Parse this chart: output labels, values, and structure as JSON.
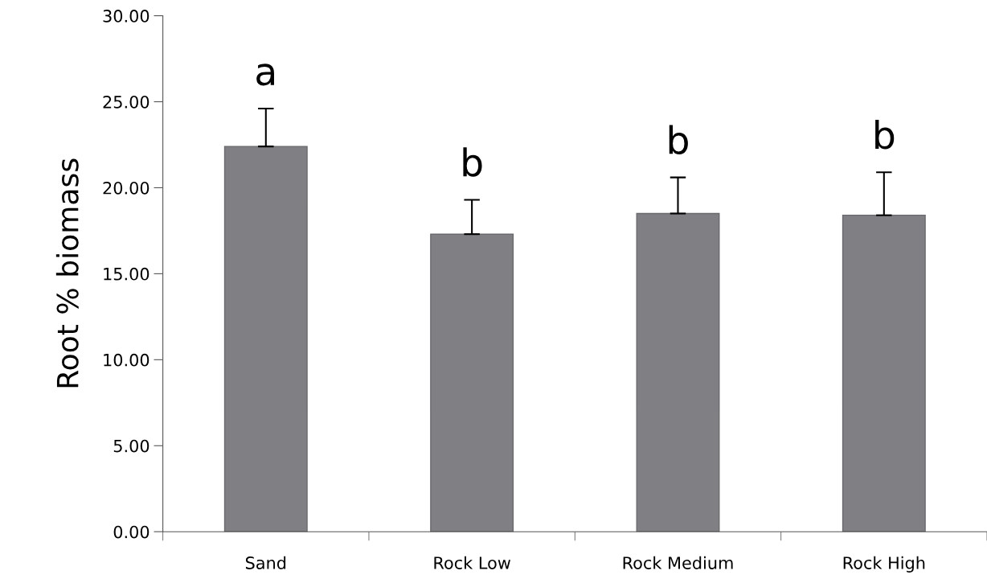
{
  "chart_data": {
    "type": "bar",
    "ylabel": "Root % biomass",
    "categories": [
      "Sand",
      "Rock Low",
      "Rock Medium",
      "Rock High"
    ],
    "values": [
      22.4,
      17.3,
      18.5,
      18.4
    ],
    "errors": [
      [
        22.4,
        24.6
      ],
      [
        17.3,
        19.3
      ],
      [
        18.5,
        20.6
      ],
      [
        18.4,
        20.9
      ]
    ],
    "color": "#808084",
    "ylim": [
      0,
      30
    ],
    "yticks": [
      {
        "value": 0,
        "label": "0.00"
      },
      {
        "value": 5,
        "label": "5.00"
      },
      {
        "value": 10,
        "label": "10.00"
      },
      {
        "value": 15,
        "label": "15.00"
      },
      {
        "value": 20,
        "label": "20.00"
      },
      {
        "value": 25,
        "label": "25.00"
      },
      {
        "value": 30,
        "label": "30.00"
      }
    ],
    "annotations": [
      "a",
      "b",
      "b",
      "b"
    ],
    "grid": false
  }
}
